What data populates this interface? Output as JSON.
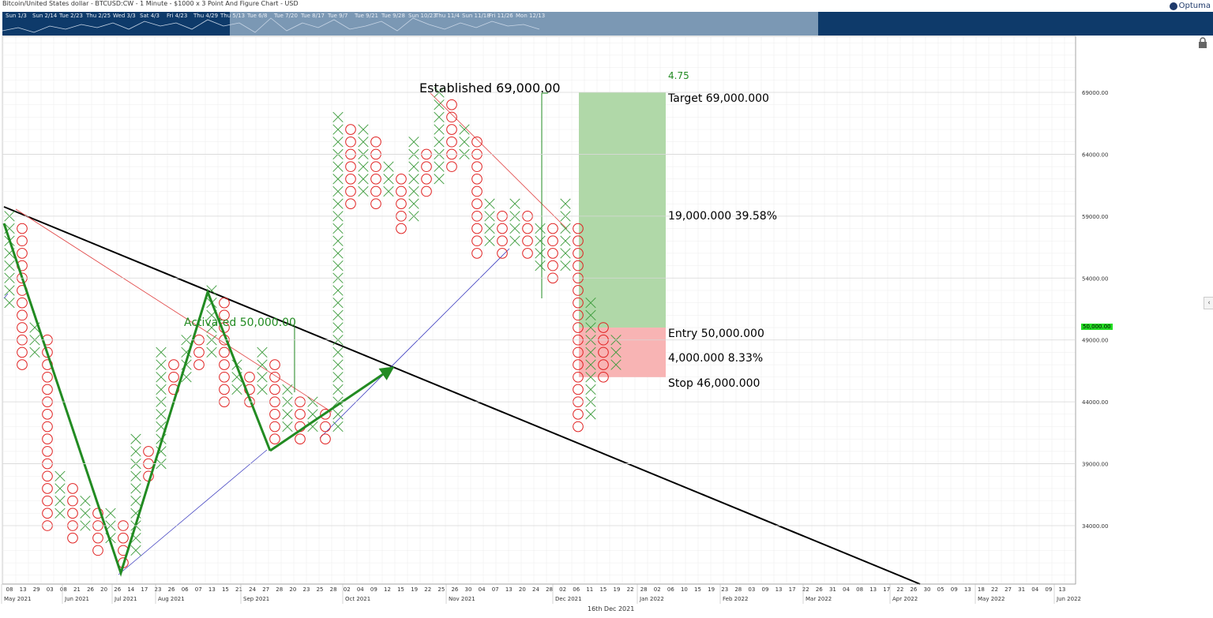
{
  "header": {
    "title": "Bitcoin/United States dollar - BTCUSD:CW - 1 Minute - $1000 x 3 Point And Figure Chart - USD",
    "brand": "Optuma"
  },
  "navigator": {
    "ticks": [
      "Sun 1/3",
      "Sun 2/14",
      "Tue 2/23",
      "Thu 2/25",
      "Wed 3/3",
      "Sat 4/3",
      "Fri 4/23",
      "Thu 4/29",
      "Thu 5/13",
      "Tue 6/8",
      "Tue 7/20",
      "Tue 8/17",
      "Tue 9/7",
      "Tue 9/21",
      "Tue 9/28",
      "Sun 10/23",
      "Thu 11/4",
      "Sun 11/18",
      "Fri 11/26",
      "Mon 12/13"
    ]
  },
  "annotations": {
    "established": "Established 69,000.00",
    "activated": "Activated 50,000.00",
    "ratio": "4.75",
    "target": "Target   69,000.000",
    "reward": "19,000.000   39.58%",
    "entry": "Entry   50,000.000",
    "risk": "4,000.000   8.33%",
    "stop": "Stop   46,000.000",
    "price_tag": "50,000.00",
    "date_caption": "16th Dec 2021"
  },
  "colors": {
    "x_mark": "#3a9a3a",
    "o_mark": "#e02020",
    "trend": "#000000",
    "zigzag": "#228b22",
    "target_zone": "#b0d8a8",
    "stop_zone": "#f8b4b4",
    "price_tag": "#22dd22",
    "nav_bg": "#0e3a6a",
    "nav_thumb": "#7b98b4"
  },
  "chart_data": {
    "type": "point-and-figure",
    "box_size": 1000,
    "reversal": 3,
    "y_axis": {
      "ticks": [
        "69000.00",
        "64000.00",
        "59000.00",
        "54000.00",
        "49000.00",
        "44000.00",
        "39000.00",
        "34000.00"
      ],
      "range": [
        30000,
        73000
      ]
    },
    "x_axis": {
      "day_ticks": [
        "08",
        "13",
        "29",
        "03",
        "08",
        "21",
        "26",
        "20",
        "26",
        "14",
        "17",
        "23",
        "26",
        "06",
        "07",
        "13",
        "15",
        "21",
        "24",
        "27",
        "28",
        "20",
        "23",
        "25",
        "28",
        "02",
        "04",
        "09",
        "12",
        "15",
        "19",
        "22",
        "25",
        "26",
        "30",
        "04",
        "07",
        "13",
        "20",
        "24",
        "28",
        "02",
        "06",
        "11",
        "15",
        "19",
        "22",
        "28",
        "02",
        "06",
        "10",
        "15",
        "19",
        "23",
        "28",
        "03",
        "09",
        "13",
        "17",
        "22",
        "26",
        "31",
        "04",
        "08",
        "13",
        "17",
        "22",
        "26",
        "30",
        "05",
        "09",
        "13",
        "18",
        "22",
        "27",
        "31",
        "04",
        "09",
        "13"
      ],
      "month_labels": [
        "May 2021",
        "Jun 2021",
        "Jul 2021",
        "Aug 2021",
        "Sep 2021",
        "Oct 2021",
        "Nov 2021",
        "Dec 2021",
        "Jan 2022",
        "Feb 2022",
        "Mar 2022",
        "Apr 2022",
        "May 2022",
        "Jun 2022"
      ]
    },
    "columns": [
      {
        "type": "X",
        "low": 52000,
        "high": 59000
      },
      {
        "type": "O",
        "low": 47000,
        "high": 58000
      },
      {
        "type": "X",
        "low": 48000,
        "high": 50000
      },
      {
        "type": "O",
        "low": 34000,
        "high": 49000
      },
      {
        "type": "X",
        "low": 35000,
        "high": 38000
      },
      {
        "type": "O",
        "low": 33000,
        "high": 37000
      },
      {
        "type": "X",
        "low": 34000,
        "high": 36000
      },
      {
        "type": "O",
        "low": 32000,
        "high": 35000
      },
      {
        "type": "X",
        "low": 33000,
        "high": 35000
      },
      {
        "type": "O",
        "low": 31000,
        "high": 34000
      },
      {
        "type": "X",
        "low": 32000,
        "high": 41000
      },
      {
        "type": "O",
        "low": 38000,
        "high": 40000
      },
      {
        "type": "X",
        "low": 39000,
        "high": 48000
      },
      {
        "type": "O",
        "low": 45000,
        "high": 47000
      },
      {
        "type": "X",
        "low": 46000,
        "high": 49000
      },
      {
        "type": "O",
        "low": 47000,
        "high": 49000
      },
      {
        "type": "X",
        "low": 48000,
        "high": 53000
      },
      {
        "type": "O",
        "low": 44000,
        "high": 52000
      },
      {
        "type": "X",
        "low": 45000,
        "high": 47000
      },
      {
        "type": "O",
        "low": 44000,
        "high": 46000
      },
      {
        "type": "X",
        "low": 45000,
        "high": 48000
      },
      {
        "type": "O",
        "low": 41000,
        "high": 47000
      },
      {
        "type": "X",
        "low": 42000,
        "high": 45000
      },
      {
        "type": "O",
        "low": 41000,
        "high": 44000
      },
      {
        "type": "X",
        "low": 42000,
        "high": 44000
      },
      {
        "type": "O",
        "low": 41000,
        "high": 43000
      },
      {
        "type": "X",
        "low": 42000,
        "high": 67000
      },
      {
        "type": "O",
        "low": 60000,
        "high": 66000
      },
      {
        "type": "X",
        "low": 61000,
        "high": 66000
      },
      {
        "type": "O",
        "low": 60000,
        "high": 65000
      },
      {
        "type": "X",
        "low": 61000,
        "high": 63000
      },
      {
        "type": "O",
        "low": 58000,
        "high": 62000
      },
      {
        "type": "X",
        "low": 59000,
        "high": 65000
      },
      {
        "type": "O",
        "low": 61000,
        "high": 64000
      },
      {
        "type": "X",
        "low": 62000,
        "high": 69000
      },
      {
        "type": "O",
        "low": 63000,
        "high": 68000
      },
      {
        "type": "X",
        "low": 64000,
        "high": 66000
      },
      {
        "type": "O",
        "low": 56000,
        "high": 65000
      },
      {
        "type": "X",
        "low": 57000,
        "high": 60000
      },
      {
        "type": "O",
        "low": 56000,
        "high": 59000
      },
      {
        "type": "X",
        "low": 57000,
        "high": 60000
      },
      {
        "type": "O",
        "low": 56000,
        "high": 59000
      },
      {
        "type": "X",
        "low": 55000,
        "high": 58000
      },
      {
        "type": "O",
        "low": 54000,
        "high": 58000
      },
      {
        "type": "X",
        "low": 55000,
        "high": 60000
      },
      {
        "type": "O",
        "low": 42000,
        "high": 58000
      },
      {
        "type": "X",
        "low": 43000,
        "high": 52000
      },
      {
        "type": "O",
        "low": 46000,
        "high": 50000
      },
      {
        "type": "X",
        "low": 47000,
        "high": 49000
      }
    ],
    "position_tool": {
      "target": 69000,
      "entry": 50000,
      "stop": 46000,
      "reward": 19000,
      "reward_pct": 39.58,
      "risk": 4000,
      "risk_pct": 8.33,
      "ratio": 4.75
    },
    "last_price": 50000
  }
}
